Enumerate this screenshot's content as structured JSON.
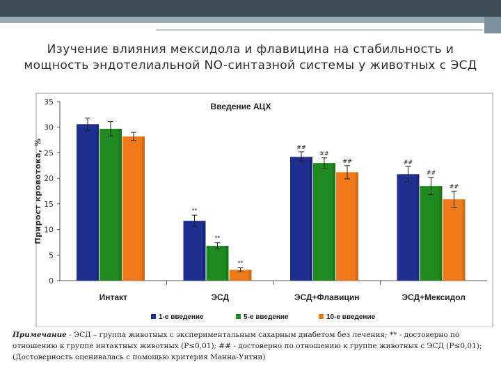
{
  "slide": {
    "title": "Изучение влияния мексидола и флавицина на стабильность и мощность эндотелиальной NO-синтазной системы у животных с ЭСД",
    "note_label": "Примечание",
    "note_text": " - ЭСД – группа животных с экспериментальным сахарным диабетом без лечения; ** - достоверно по отношению к группе интактных животных (Р≤0,01); ## - достоверно по отношению к группе животных с ЭСД (Р≤0,01); (Достоверность оценивалась с помощью критерия Манна-Уитни)"
  },
  "colors": {
    "series1": "#1f2f8f",
    "series2": "#1f8a1f",
    "series3": "#f07a1a",
    "band_dark": "#3d4c55",
    "band_light": "#97aab1"
  },
  "chart_data": {
    "type": "bar",
    "title": "Введение АЦХ",
    "xlabel": "",
    "ylabel": "Прирост кровотока, %",
    "ylim": [
      0,
      35
    ],
    "yticks": [
      "0",
      "5",
      "10",
      "15",
      "20",
      "25",
      "30",
      "35"
    ],
    "categories": [
      "Интакт",
      "ЭСД",
      "ЭСД+Флавицин",
      "ЭСД+Мексидол"
    ],
    "series": [
      {
        "name": "1-е введение",
        "values": [
          30.6,
          11.7,
          24.2,
          20.8
        ],
        "errors": [
          1.2,
          1.1,
          1.0,
          1.5
        ]
      },
      {
        "name": "5-е введение",
        "values": [
          29.7,
          6.8,
          23.0,
          18.5
        ],
        "errors": [
          1.4,
          0.6,
          1.0,
          1.7
        ]
      },
      {
        "name": "10-е введение",
        "values": [
          28.2,
          2.1,
          21.2,
          15.9
        ],
        "errors": [
          0.8,
          0.4,
          1.3,
          1.6
        ]
      }
    ],
    "annotations": [
      [
        "",
        "",
        ""
      ],
      [
        "**",
        "**",
        "**"
      ],
      [
        "##",
        "##",
        "##"
      ],
      [
        "##",
        "##",
        "##"
      ]
    ],
    "grid": false,
    "legend_position": "bottom"
  }
}
